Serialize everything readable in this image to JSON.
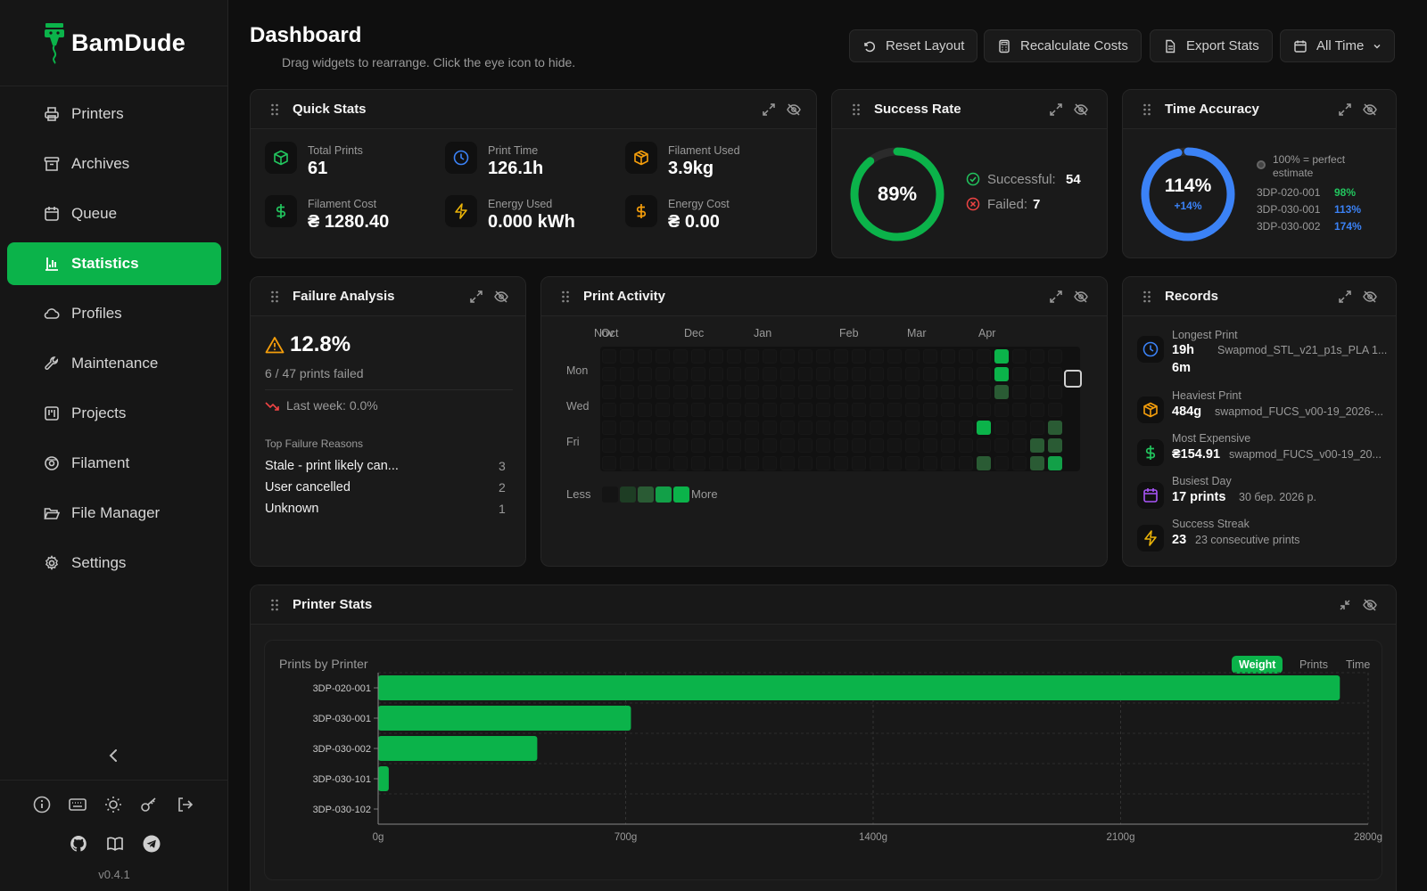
{
  "app": {
    "name": "BamDude",
    "version": "v0.4.1"
  },
  "nav": [
    {
      "id": "printers",
      "label": "Printers",
      "icon": "printer-icon"
    },
    {
      "id": "archives",
      "label": "Archives",
      "icon": "archive-icon"
    },
    {
      "id": "queue",
      "label": "Queue",
      "icon": "calendar-icon"
    },
    {
      "id": "statistics",
      "label": "Statistics",
      "icon": "bar-chart-icon",
      "active": true
    },
    {
      "id": "profiles",
      "label": "Profiles",
      "icon": "cloud-icon"
    },
    {
      "id": "maintenance",
      "label": "Maintenance",
      "icon": "wrench-icon"
    },
    {
      "id": "projects",
      "label": "Projects",
      "icon": "kanban-icon"
    },
    {
      "id": "filament",
      "label": "Filament",
      "icon": "spool-icon"
    },
    {
      "id": "file-manager",
      "label": "File Manager",
      "icon": "folder-open-icon"
    },
    {
      "id": "settings",
      "label": "Settings",
      "icon": "gear-icon"
    }
  ],
  "header": {
    "title": "Dashboard",
    "subtitle": "Drag widgets to rearrange. Click the eye icon to hide.",
    "reset_label": "Reset Layout",
    "recalc_label": "Recalculate Costs",
    "export_label": "Export Stats",
    "range_label": "All Time"
  },
  "quick_stats": {
    "title": "Quick Stats",
    "items": [
      {
        "label": "Total Prints",
        "value": "61",
        "icon": "cube-icon",
        "color": "#22c55e"
      },
      {
        "label": "Print Time",
        "value": "126.1h",
        "icon": "clock-icon",
        "color": "#3b82f6"
      },
      {
        "label": "Filament Used",
        "value": "3.9kg",
        "icon": "package-icon",
        "color": "#f59e0b"
      },
      {
        "label": "Filament Cost",
        "value": "₴ 1280.40",
        "icon": "dollar-icon",
        "color": "#22c55e"
      },
      {
        "label": "Energy Used",
        "value": "0.000 kWh",
        "icon": "bolt-icon",
        "color": "#eab308"
      },
      {
        "label": "Energy Cost",
        "value": "₴ 0.00",
        "icon": "dollar-icon",
        "color": "#f59e0b"
      }
    ]
  },
  "success_rate": {
    "title": "Success Rate",
    "percent_label": "89%",
    "percent": 0.89,
    "successful_label": "Successful:",
    "successful": "54",
    "failed_label": "Failed:",
    "failed": "7"
  },
  "time_accuracy": {
    "title": "Time Accuracy",
    "percent_label": "114%",
    "delta": "+14%",
    "legend": "100% = perfect estimate",
    "printers": [
      {
        "name": "3DP-020-001",
        "value": "98%",
        "color": "#22c55e"
      },
      {
        "name": "3DP-030-001",
        "value": "113%",
        "color": "#3b82f6"
      },
      {
        "name": "3DP-030-002",
        "value": "174%",
        "color": "#3b82f6"
      }
    ]
  },
  "failure_analysis": {
    "title": "Failure Analysis",
    "rate": "12.8%",
    "summary": "6 / 47 prints failed",
    "last_week": "Last week: 0.0%",
    "reasons_title": "Top Failure Reasons",
    "reasons": [
      {
        "label": "Stale - print likely can...",
        "count": "3"
      },
      {
        "label": "User cancelled",
        "count": "2"
      },
      {
        "label": "Unknown",
        "count": "1"
      }
    ]
  },
  "print_activity": {
    "title": "Print Activity",
    "months": [
      "Nov",
      "Oct",
      "Dec",
      "Jan",
      "Feb",
      "Mar",
      "Apr"
    ],
    "days": [
      "Mon",
      "Wed",
      "Fri"
    ],
    "less": "Less",
    "more": "More",
    "active_cells": [
      {
        "week": 22,
        "day": 0,
        "level": 4
      },
      {
        "week": 22,
        "day": 1,
        "level": 4
      },
      {
        "week": 22,
        "day": 2,
        "level": 2
      },
      {
        "week": 21,
        "day": 4,
        "level": 4
      },
      {
        "week": 21,
        "day": 6,
        "level": 2
      },
      {
        "week": 24,
        "day": 5,
        "level": 2
      },
      {
        "week": 24,
        "day": 6,
        "level": 2
      },
      {
        "week": 25,
        "day": 4,
        "level": 2
      },
      {
        "week": 25,
        "day": 5,
        "level": 2
      },
      {
        "week": 25,
        "day": 6,
        "level": 3
      }
    ]
  },
  "records": {
    "title": "Records",
    "items": [
      {
        "label": "Longest Print",
        "value": "19h 6m",
        "value1": "19h",
        "value2": "6m",
        "detail": "Swapmod_STL_v21_p1s_PLA 1...",
        "icon": "clock-icon",
        "color": "#3b82f6"
      },
      {
        "label": "Heaviest Print",
        "value": "484g",
        "detail": "swapmod_FUCS_v00-19_2026-...",
        "icon": "package-icon",
        "color": "#f59e0b"
      },
      {
        "label": "Most Expensive",
        "value": "₴154.91",
        "detail": "swapmod_FUCS_v00-19_20...",
        "icon": "dollar-icon",
        "color": "#22c55e"
      },
      {
        "label": "Busiest Day",
        "value": "17 prints",
        "detail": "30 бер. 2026 р.",
        "icon": "calendar-icon",
        "color": "#a855f7"
      },
      {
        "label": "Success Streak",
        "value": "23",
        "detail": "23 consecutive prints",
        "icon": "bolt-icon",
        "color": "#eab308"
      }
    ]
  },
  "printer_stats": {
    "title": "Printer Stats",
    "chart_title": "Prints by Printer",
    "tabs": [
      "Weight",
      "Prints",
      "Time"
    ],
    "active_tab": "Weight"
  },
  "chart_data": {
    "type": "bar",
    "orientation": "horizontal",
    "title": "Prints by Printer",
    "categories": [
      "3DP-020-001",
      "3DP-030-001",
      "3DP-030-002",
      "3DP-030-101",
      "3DP-030-102"
    ],
    "values": [
      2720,
      715,
      450,
      30,
      0
    ],
    "xlim": [
      0,
      2800
    ],
    "xticks": [
      "0g",
      "700g",
      "1400g",
      "2100g",
      "2800g"
    ],
    "grid": true,
    "color": "#0bb34a"
  }
}
